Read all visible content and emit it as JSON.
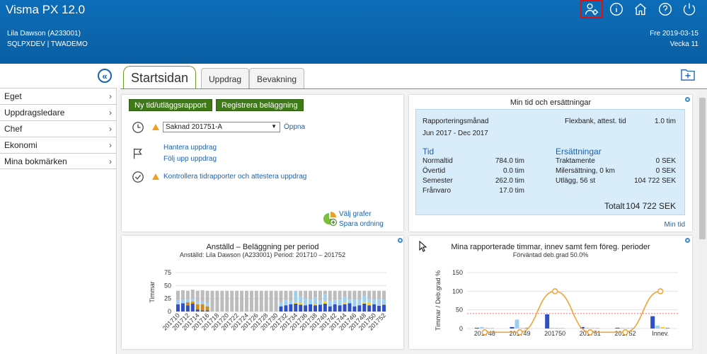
{
  "header": {
    "app_title": "Visma PX 12.0",
    "user_name": "Lila Dawson (A233001)",
    "user_db": "SQLPXDEV | TWADEMO",
    "date": "Fre 2019-03-15",
    "week": "Vecka 11",
    "icons": [
      "user-settings-icon",
      "info-icon",
      "home-icon",
      "help-icon",
      "power-icon"
    ]
  },
  "sidebar": {
    "collapse_icon": "«",
    "items": [
      {
        "label": "Eget"
      },
      {
        "label": "Uppdragsledare"
      },
      {
        "label": "Chef"
      },
      {
        "label": "Ekonomi"
      },
      {
        "label": "Mina bokmärken"
      }
    ],
    "chevron": "›"
  },
  "tabs": [
    {
      "label": "Startsidan",
      "active": true
    },
    {
      "label": "Uppdrag"
    },
    {
      "label": "Bevakning"
    }
  ],
  "actions": {
    "btn_new_report": "Ny tid/utläggsrapport",
    "btn_register": "Registrera beläggning",
    "period_value": "Saknad 201751-A",
    "period_link": "Öppna",
    "link_manage": "Hantera uppdrag",
    "link_follow": "Följ upp uppdrag",
    "link_control": "Kontrollera tidrapporter och attestera uppdrag",
    "link_charts": "Välj grafer",
    "link_save_order": "Spara ordning"
  },
  "mytime": {
    "title": "Min tid och ersättningar",
    "report_month_label": "Rapporteringsmånad",
    "report_month_value": "Jun 2017 - Dec 2017",
    "flexbank_label": "Flexbank, attest. tid",
    "flexbank_value": "1.0 tim",
    "tid_heading": "Tid",
    "tid_rows": [
      {
        "label": "Normaltid",
        "value": "784.0 tim"
      },
      {
        "label": "Övertid",
        "value": "0.0 tim"
      },
      {
        "label": "Semester",
        "value": "262.0 tim"
      },
      {
        "label": "Frånvaro",
        "value": "17.0 tim"
      }
    ],
    "ers_heading": "Ersättningar",
    "ers_rows": [
      {
        "label": "Traktamente",
        "value": "0 SEK"
      },
      {
        "label": "Milersättning, 0 km",
        "value": "0 SEK"
      },
      {
        "label": "Utlägg, 56 st",
        "value": "104 722 SEK"
      }
    ],
    "total_label": "Totalt",
    "total_value": "104 722 SEK",
    "link_mytime": "Min tid"
  },
  "chart_data": [
    {
      "type": "bar",
      "title": "Anställd – Beläggning per period",
      "subtitle": "Anställd: Lila Dawson (A233001)    Period: 201710 – 201752",
      "ylabel": "Timmar",
      "xlabel": "",
      "ylim": [
        0,
        75
      ],
      "yticks": [
        0,
        25,
        50,
        75
      ],
      "x_tick_labels": [
        "201710",
        "201712",
        "201714",
        "201716",
        "201718",
        "201720",
        "201722",
        "201724",
        "201726",
        "201728",
        "201730",
        "201732",
        "201734",
        "201736",
        "201738",
        "201740",
        "201742",
        "201744",
        "201746",
        "201748",
        "201750",
        "201752"
      ],
      "categories_count": 43,
      "totals": [
        40,
        41,
        40,
        42,
        40,
        41,
        40,
        42,
        40,
        40,
        40,
        40,
        40,
        40,
        40,
        40,
        40,
        40,
        40,
        40,
        40,
        40,
        40,
        40,
        40,
        40,
        40,
        40,
        40,
        40,
        40,
        40,
        40,
        40,
        40,
        40,
        40,
        40,
        40,
        40,
        40,
        40,
        40
      ],
      "series": [
        {
          "name": "",
          "color": "#2f4fc4",
          "values": [
            14,
            16,
            12,
            15,
            4,
            2,
            2,
            0,
            0,
            0,
            0,
            0,
            0,
            0,
            0,
            0,
            0,
            0,
            0,
            0,
            0,
            10,
            12,
            14,
            15,
            13,
            12,
            14,
            12,
            13,
            15,
            10,
            14,
            12,
            14,
            16,
            10,
            12,
            15,
            12,
            14,
            11,
            13
          ]
        },
        {
          "name": "",
          "color": "#d08a22",
          "values": [
            0,
            0,
            6,
            4,
            10,
            12,
            8,
            0,
            0,
            0,
            0,
            0,
            0,
            0,
            0,
            0,
            0,
            0,
            0,
            0,
            0,
            0,
            0,
            0,
            0,
            0,
            0,
            0,
            0,
            0,
            0,
            0,
            0,
            0,
            0,
            0,
            0,
            0,
            0,
            0,
            0,
            0,
            0
          ]
        },
        {
          "name": "",
          "color": "#f2d43a",
          "values": [
            0,
            0,
            0,
            0,
            0,
            0,
            0,
            0,
            0,
            0,
            0,
            0,
            0,
            0,
            0,
            0,
            0,
            0,
            0,
            0,
            0,
            0,
            0,
            0,
            2,
            4,
            0,
            0,
            3,
            0,
            5,
            0,
            0,
            0,
            4,
            0,
            0,
            0,
            3,
            6,
            0,
            0,
            2
          ]
        },
        {
          "name": "",
          "color": "#9fd0f0",
          "values": [
            8,
            6,
            6,
            5,
            5,
            5,
            6,
            0,
            0,
            0,
            0,
            0,
            0,
            0,
            0,
            0,
            0,
            0,
            0,
            0,
            0,
            8,
            10,
            6,
            22,
            12,
            14,
            10,
            12,
            8,
            14,
            10,
            8,
            12,
            10,
            8,
            14,
            10,
            12,
            6,
            10,
            14,
            8
          ]
        },
        {
          "name": "",
          "color": "#bcbcbc",
          "values": [
            18,
            19,
            16,
            18,
            21,
            22,
            24,
            40,
            40,
            40,
            40,
            40,
            40,
            40,
            40,
            40,
            40,
            40,
            40,
            40,
            40,
            22,
            18,
            20,
            1,
            11,
            14,
            16,
            13,
            19,
            6,
            20,
            18,
            16,
            12,
            16,
            16,
            18,
            10,
            16,
            16,
            15,
            17
          ]
        }
      ]
    },
    {
      "type": "bar",
      "title": "Mina rapporterade timmar, innev samt fem föreg. perioder",
      "subtitle": "Förväntad deb.grad 50.0%",
      "ylabel": "Timmar / Deb.grad %",
      "xlabel": "",
      "ylim": [
        0,
        150
      ],
      "yticks": [
        0,
        50,
        100,
        150
      ],
      "categories": [
        "201748",
        "201749",
        "201750",
        "201751",
        "201752",
        "Innev."
      ],
      "series": [
        {
          "name": "",
          "color": "#2f4fc4",
          "values": [
            2,
            4,
            38,
            4,
            2,
            33
          ]
        },
        {
          "name": "",
          "color": "#9fd0f0",
          "values": [
            4,
            24,
            2,
            2,
            2,
            8
          ]
        },
        {
          "name": "",
          "color": "#f2d43a",
          "values": [
            2,
            2,
            2,
            2,
            2,
            4
          ]
        },
        {
          "name": "",
          "color": "#d08a22",
          "values": [
            1,
            2,
            1,
            1,
            1,
            2
          ]
        }
      ],
      "line": {
        "name": "",
        "color": "#f2a33a",
        "values": [
          -10,
          -10,
          100,
          -10,
          -10,
          100
        ]
      },
      "target_line": 40
    }
  ]
}
